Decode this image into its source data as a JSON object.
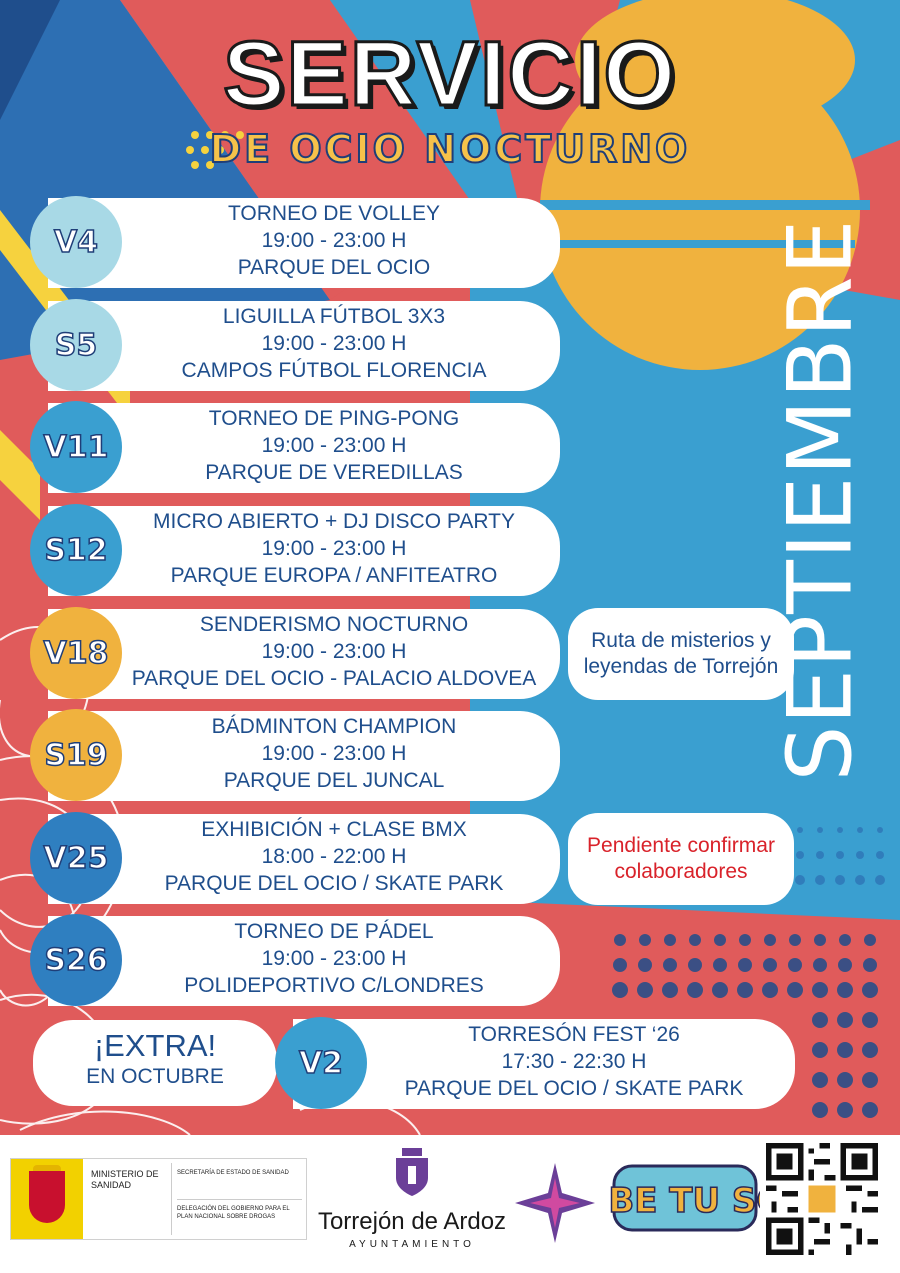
{
  "title": {
    "main": "SERVICIO",
    "sub": "DE OCIO NOCTURNO"
  },
  "month": "SEPTIEMBRE",
  "colors": {
    "navy": "#1f4e8c",
    "red": "#e05b5b",
    "blue": "#3a9fd0",
    "yellow": "#f0b23e",
    "pale": "#a8d9e6",
    "accent_red": "#d9222a"
  },
  "events": [
    {
      "day": "V4",
      "circle_color": "#a8d9e6",
      "title": "TORNEO DE VOLLEY",
      "time": "19:00 - 23:00 H",
      "place": "PARQUE DEL OCIO"
    },
    {
      "day": "S5",
      "circle_color": "#a8d9e6",
      "title": "LIGUILLA FÚTBOL 3X3",
      "time": "19:00 - 23:00 H",
      "place": "CAMPOS FÚTBOL FLORENCIA"
    },
    {
      "day": "V11",
      "circle_color": "#3a9fd0",
      "title": "TORNEO DE PING-PONG",
      "time": "19:00 - 23:00 H",
      "place": "PARQUE DE VEREDILLAS"
    },
    {
      "day": "S12",
      "circle_color": "#3a9fd0",
      "title": "MICRO ABIERTO + DJ DISCO PARTY",
      "time": "19:00 - 23:00 H",
      "place": "PARQUE EUROPA / ANFITEATRO"
    },
    {
      "day": "V18",
      "circle_color": "#f0b23e",
      "title": "SENDERISMO NOCTURNO",
      "time": "19:00 - 23:00 H",
      "place": "PARQUE DEL OCIO - PALACIO ALDOVEA"
    },
    {
      "day": "S19",
      "circle_color": "#f0b23e",
      "title": "BÁDMINTON CHAMPION",
      "time": "19:00 - 23:00 H",
      "place": "PARQUE DEL JUNCAL"
    },
    {
      "day": "V25",
      "circle_color": "#2f7fc0",
      "title": "EXHIBICIÓN + CLASE BMX",
      "time": "18:00 - 22:00 H",
      "place": "PARQUE DEL OCIO / SKATE PARK"
    },
    {
      "day": "S26",
      "circle_color": "#2f7fc0",
      "title": "TORNEO DE PÁDEL",
      "time": "19:00 - 23:00 H",
      "place": "POLIDEPORTIVO C/LONDRES"
    }
  ],
  "notes": [
    {
      "text": "Ruta de misterios y leyendas de Torrejón",
      "color": "#1f4e8c"
    },
    {
      "text": "Pendiente confirmar colaboradores",
      "color": "#d9222a"
    }
  ],
  "extra": {
    "label": "¡EXTRA!",
    "sublabel": "EN OCTUBRE",
    "day": "V2",
    "circle_color": "#3a9fd0",
    "title": "TORRESÓN FEST ‘26",
    "time": "17:30 - 22:30 H",
    "place": "PARQUE DEL OCIO / SKATE PARK"
  },
  "footer": {
    "ministry_name": "MINISTERIO DE SANIDAD",
    "ministry_sub1": "SECRETARÍA DE ESTADO DE SANIDAD",
    "ministry_sub2": "DELEGACIÓN DEL GOBIERNO PARA EL PLAN NACIONAL SOBRE DROGAS",
    "city_name": "Torrejón de Ardoz",
    "city_sub": "AYUNTAMIENTO",
    "logo_star": "star-burst-logo",
    "logo_graffiti": "graffiti-logo",
    "graffiti_text": "SUBE TU SON",
    "qr": "qr-code"
  }
}
